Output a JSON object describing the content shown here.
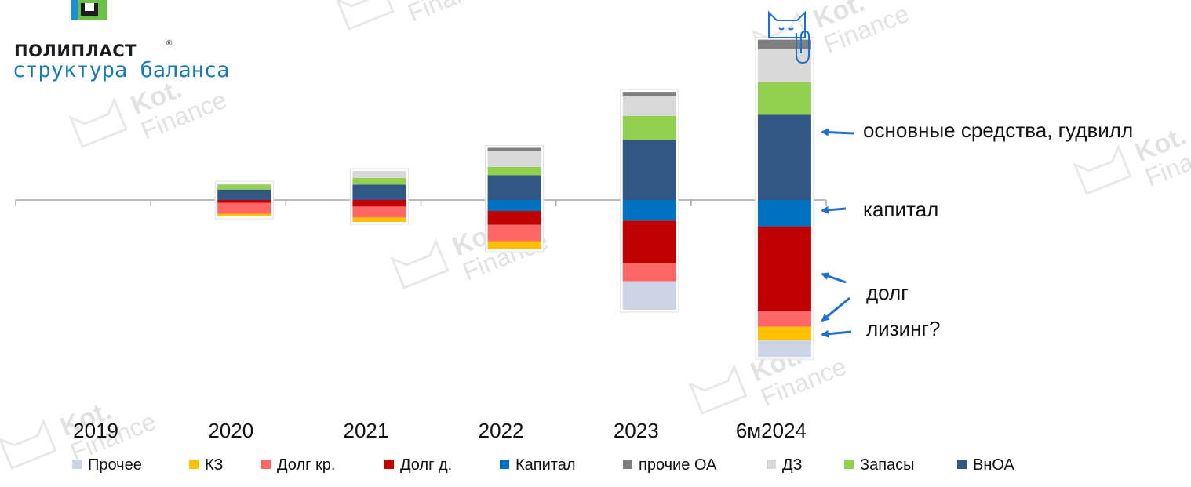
{
  "brand": {
    "name": "ПОЛИПЛАСТ",
    "trademark": "®",
    "subtitle": "структура баланса"
  },
  "watermark": {
    "line1": "Kot.",
    "line2": "Finance"
  },
  "colors": {
    "Прочее": "#cdd4e6",
    "КЗ": "#ffc000",
    "Долг кр.": "#ff6666",
    "Долг д.": "#c00000",
    "Капитал": "#0070c0",
    "прочие ОА": "#7f7f7f",
    "ДЗ": "#d9d9d9",
    "Запасы": "#92d050",
    "ВнОА": "#335784",
    "arrow": "#1f6fd1",
    "axis": "#a6a6a6",
    "subtitle": "#1679b5"
  },
  "chart_data": {
    "type": "bar",
    "stacked": true,
    "diverging": true,
    "categories": [
      "2019",
      "2020",
      "2021",
      "2022",
      "2023",
      "6м2024"
    ],
    "note": "assets (ВнОА, Запасы, ДЗ, прочие ОА) stack above the axis, liabilities & equity (Капитал, Долг д., Долг кр., КЗ, Прочее) stack below; no numeric scale is printed, values are relative units",
    "series": [
      {
        "name": "Прочее",
        "side": "below",
        "values": [
          0,
          0,
          0,
          0,
          5.2,
          3.0
        ]
      },
      {
        "name": "КЗ",
        "side": "below",
        "values": [
          0,
          0.5,
          0.8,
          1.5,
          0,
          2.5
        ]
      },
      {
        "name": "Долг кр.",
        "side": "below",
        "values": [
          0,
          2.0,
          2.0,
          3.0,
          3.2,
          2.8
        ]
      },
      {
        "name": "Долг д.",
        "side": "below",
        "values": [
          0,
          0.5,
          1.2,
          2.5,
          7.8,
          15.5
        ]
      },
      {
        "name": "Капитал",
        "side": "below",
        "values": [
          0,
          0,
          0,
          2.0,
          3.8,
          4.8
        ]
      },
      {
        "name": "ВнОА",
        "side": "above",
        "values": [
          0,
          1.9,
          2.8,
          4.5,
          11.0,
          15.5
        ]
      },
      {
        "name": "Запасы",
        "side": "above",
        "values": [
          0,
          0.9,
          1.2,
          1.5,
          4.3,
          6.0
        ]
      },
      {
        "name": "ДЗ",
        "side": "above",
        "values": [
          0,
          0.2,
          1.3,
          3.0,
          3.7,
          6.0
        ]
      },
      {
        "name": "прочие ОА",
        "side": "above",
        "values": [
          0,
          0,
          0,
          0.5,
          0.7,
          1.7
        ]
      }
    ],
    "legend": {
      "position": "bottom",
      "entries": [
        "Прочее",
        "КЗ",
        "Долг кр.",
        "Долг д.",
        "Капитал",
        "прочие ОА",
        "ДЗ",
        "Запасы",
        "ВнОА"
      ]
    },
    "annotations": [
      {
        "text": "основные средства, гудвилл",
        "points_to": "ВнОА"
      },
      {
        "text": "капитал",
        "points_to": "Капитал"
      },
      {
        "text": "долг",
        "points_to": "Долг д."
      },
      {
        "text": "лизинг?",
        "points_to": "Долг кр."
      }
    ],
    "grid": false,
    "title": "структура баланса",
    "xlabel": "",
    "ylabel": ""
  }
}
